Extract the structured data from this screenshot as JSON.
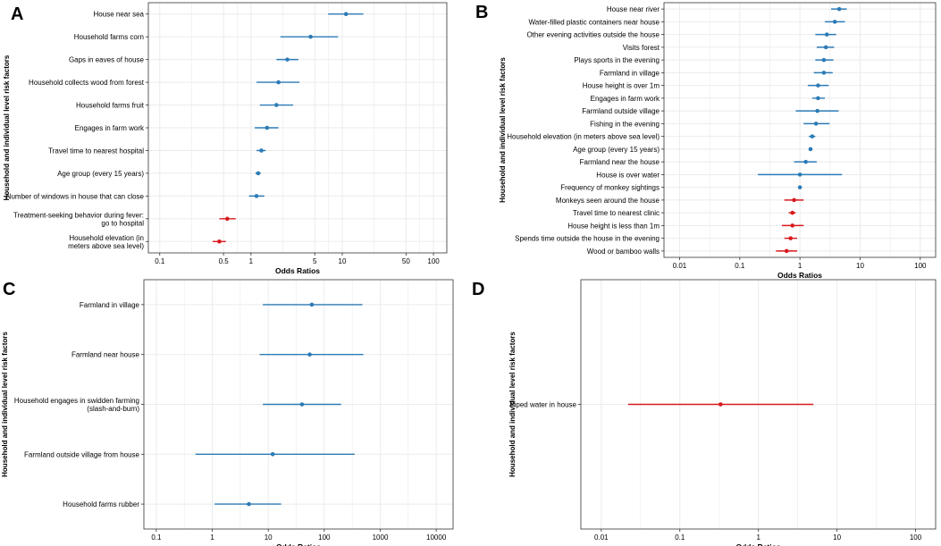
{
  "figure": {
    "colors": {
      "protective": "#d7191c",
      "risk": "#2c7bb6",
      "grid": "#ebebeb",
      "frame": "#333333",
      "text": "#000000"
    }
  },
  "chart_data": [
    {
      "type": "forest",
      "panel_label": "A",
      "title": "",
      "xlabel": "Odds Ratios",
      "ylabel": "Household and individual level risk factors",
      "xscale": "log",
      "xlim": [
        0.075,
        140
      ],
      "xticks": [
        0.1,
        0.5,
        1,
        5,
        10,
        50,
        100
      ],
      "items": [
        {
          "label": [
            "House near sea"
          ],
          "or": 11,
          "lo": 7,
          "hi": 17,
          "dir": "risk"
        },
        {
          "label": [
            "Household farms corn"
          ],
          "or": 4.5,
          "lo": 2.1,
          "hi": 9,
          "dir": "risk"
        },
        {
          "label": [
            "Gaps in eaves of house"
          ],
          "or": 2.5,
          "lo": 1.9,
          "hi": 3.3,
          "dir": "risk"
        },
        {
          "label": [
            "Household collects wood from forest"
          ],
          "or": 2.0,
          "lo": 1.15,
          "hi": 3.4,
          "dir": "risk"
        },
        {
          "label": [
            "Household farms fruit"
          ],
          "or": 1.9,
          "lo": 1.25,
          "hi": 2.9,
          "dir": "risk"
        },
        {
          "label": [
            "Engages in farm work"
          ],
          "or": 1.5,
          "lo": 1.1,
          "hi": 2.0,
          "dir": "risk"
        },
        {
          "label": [
            "Travel time to nearest hospital"
          ],
          "or": 1.3,
          "lo": 1.15,
          "hi": 1.45,
          "dir": "risk"
        },
        {
          "label": [
            "Age group (every 15 years)"
          ],
          "or": 1.2,
          "lo": 1.12,
          "hi": 1.28,
          "dir": "risk"
        },
        {
          "label": [
            "Number of windows in house that can close"
          ],
          "or": 1.15,
          "lo": 0.95,
          "hi": 1.4,
          "dir": "risk"
        },
        {
          "label": [
            "Treatment-seeking behavior during fever:",
            "go to hospital"
          ],
          "or": 0.55,
          "lo": 0.45,
          "hi": 0.68,
          "dir": "protective"
        },
        {
          "label": [
            "Household elevation (in",
            "meters above sea level)"
          ],
          "or": 0.45,
          "lo": 0.38,
          "hi": 0.53,
          "dir": "protective"
        }
      ]
    },
    {
      "type": "forest",
      "panel_label": "B",
      "title": "",
      "xlabel": "Odds Ratios",
      "ylabel": "Household and individual level risk factors",
      "xscale": "log",
      "xlim": [
        0.0055,
        180
      ],
      "xticks": [
        0.01,
        0.1,
        1,
        10,
        100
      ],
      "items": [
        {
          "label": [
            "House near river"
          ],
          "or": 4.5,
          "lo": 3.3,
          "hi": 6.0,
          "dir": "risk"
        },
        {
          "label": [
            "Water-filled plastic containers near house"
          ],
          "or": 3.8,
          "lo": 2.6,
          "hi": 5.6,
          "dir": "risk"
        },
        {
          "label": [
            "Other evening activities outside the house"
          ],
          "or": 2.8,
          "lo": 1.8,
          "hi": 4.0,
          "dir": "risk"
        },
        {
          "label": [
            "Visits forest"
          ],
          "or": 2.7,
          "lo": 1.9,
          "hi": 3.7,
          "dir": "risk"
        },
        {
          "label": [
            "Plays sports in the evening"
          ],
          "or": 2.5,
          "lo": 1.8,
          "hi": 3.6,
          "dir": "risk"
        },
        {
          "label": [
            "Farmland in village"
          ],
          "or": 2.5,
          "lo": 1.7,
          "hi": 3.5,
          "dir": "risk"
        },
        {
          "label": [
            "House height is over 1m"
          ],
          "or": 2.0,
          "lo": 1.35,
          "hi": 3.0,
          "dir": "risk"
        },
        {
          "label": [
            "Engages in farm work"
          ],
          "or": 2.0,
          "lo": 1.6,
          "hi": 2.6,
          "dir": "risk"
        },
        {
          "label": [
            "Farmland outside village"
          ],
          "or": 1.95,
          "lo": 0.85,
          "hi": 4.4,
          "dir": "risk"
        },
        {
          "label": [
            "Fishing in the evening"
          ],
          "or": 1.85,
          "lo": 1.15,
          "hi": 3.1,
          "dir": "risk"
        },
        {
          "label": [
            "Household elevation (in meters above sea level)"
          ],
          "or": 1.6,
          "lo": 1.4,
          "hi": 1.8,
          "dir": "risk"
        },
        {
          "label": [
            "Age group (every 15 years)"
          ],
          "or": 1.5,
          "lo": 1.4,
          "hi": 1.6,
          "dir": "risk"
        },
        {
          "label": [
            "Farmland near the house"
          ],
          "or": 1.25,
          "lo": 0.8,
          "hi": 1.9,
          "dir": "risk"
        },
        {
          "label": [
            "House is over water"
          ],
          "or": 1.0,
          "lo": 0.2,
          "hi": 5.0,
          "dir": "risk"
        },
        {
          "label": [
            "Frequency of monkey sightings"
          ],
          "or": 1.0,
          "lo": 0.95,
          "hi": 1.05,
          "dir": "risk"
        },
        {
          "label": [
            "Monkeys seen around the house"
          ],
          "or": 0.8,
          "lo": 0.55,
          "hi": 1.15,
          "dir": "protective"
        },
        {
          "label": [
            "Travel time to nearest clinic"
          ],
          "or": 0.75,
          "lo": 0.65,
          "hi": 0.85,
          "dir": "protective"
        },
        {
          "label": [
            "House height is less than 1m"
          ],
          "or": 0.75,
          "lo": 0.5,
          "hi": 1.15,
          "dir": "protective"
        },
        {
          "label": [
            "Spends time outside the house in the evening"
          ],
          "or": 0.7,
          "lo": 0.55,
          "hi": 0.9,
          "dir": "protective"
        },
        {
          "label": [
            "Wood or bamboo walls"
          ],
          "or": 0.6,
          "lo": 0.4,
          "hi": 0.9,
          "dir": "protective"
        }
      ]
    },
    {
      "type": "forest",
      "panel_label": "C",
      "title": "",
      "xlabel": "Odds Ratios",
      "ylabel": "Household and individual level risk factors",
      "xscale": "log",
      "xlim": [
        0.06,
        20000
      ],
      "xticks": [
        0.1,
        1,
        10,
        100,
        1000,
        10000
      ],
      "items": [
        {
          "label": [
            "Farmland in village"
          ],
          "or": 60,
          "lo": 8,
          "hi": 480,
          "dir": "risk"
        },
        {
          "label": [
            "Farmland near house"
          ],
          "or": 55,
          "lo": 7,
          "hi": 500,
          "dir": "risk"
        },
        {
          "label": [
            "Household engages in swidden farming",
            "(slash-and-burn)"
          ],
          "or": 40,
          "lo": 8,
          "hi": 200,
          "dir": "risk"
        },
        {
          "label": [
            "Farmland outside village from house"
          ],
          "or": 12,
          "lo": 0.5,
          "hi": 350,
          "dir": "risk"
        },
        {
          "label": [
            "Household farms rubber"
          ],
          "or": 4.5,
          "lo": 1.1,
          "hi": 17,
          "dir": "risk"
        }
      ]
    },
    {
      "type": "forest",
      "panel_label": "D",
      "title": "",
      "xlabel": "Odds Ratios",
      "ylabel": "Household and individual level risk factors",
      "xscale": "log",
      "xlim": [
        0.0055,
        180
      ],
      "xticks": [
        0.01,
        0.1,
        1,
        10,
        100
      ],
      "items": [
        {
          "label": [
            "Piped water in house"
          ],
          "or": 0.33,
          "lo": 0.022,
          "hi": 5.0,
          "dir": "protective"
        }
      ]
    }
  ]
}
